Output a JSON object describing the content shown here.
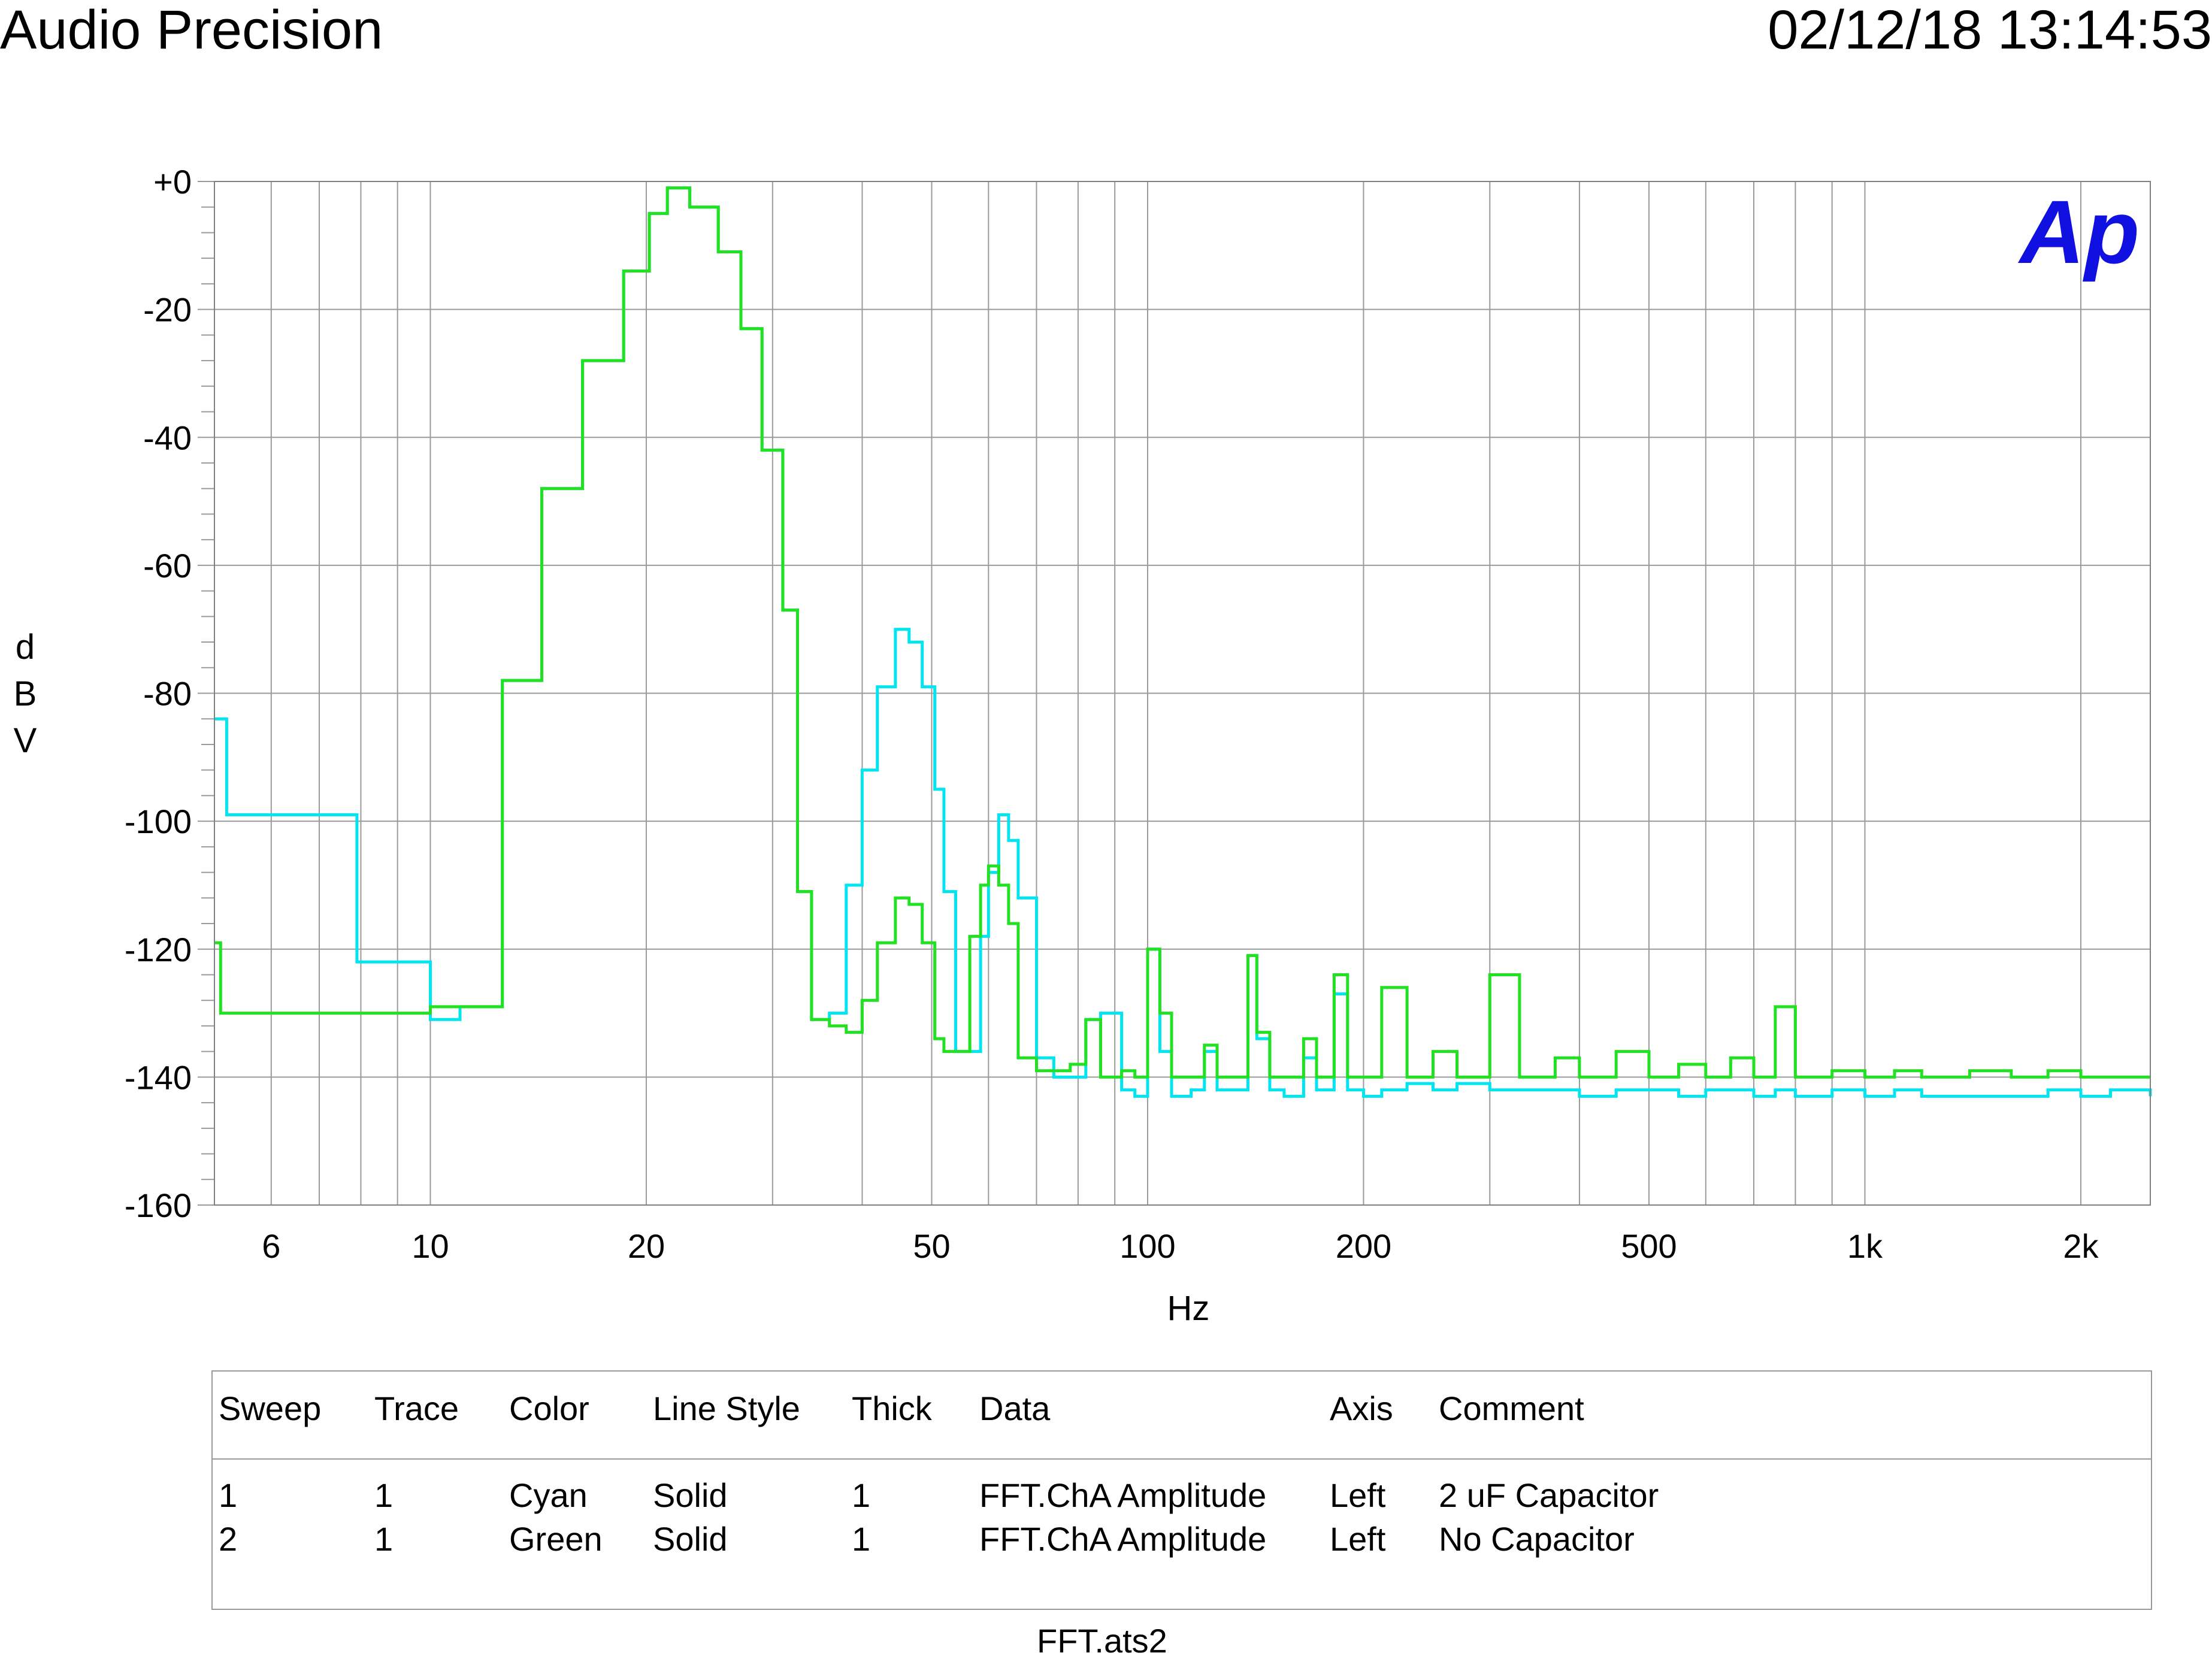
{
  "header": {
    "title": "Audio Precision",
    "timestamp": "02/12/18 13:14:53"
  },
  "logo": {
    "text": "Ap",
    "color": "#1010e0"
  },
  "footer": {
    "filename": "FFT.ats2"
  },
  "legend": {
    "columns": [
      "Sweep",
      "Trace",
      "Color",
      "Line Style",
      "Thick",
      "Data",
      "Axis",
      "Comment"
    ],
    "rows": [
      [
        "1",
        "1",
        "Cyan",
        "Solid",
        "1",
        "FFT.ChA Amplitude",
        "Left",
        "2 uF Capacitor"
      ],
      [
        "2",
        "1",
        "Green",
        "Solid",
        "1",
        "FFT.ChA Amplitude",
        "Left",
        "No Capacitor"
      ]
    ]
  },
  "chart_data": {
    "type": "line",
    "xlabel": "Hz",
    "ylabel": "dBV",
    "xscale": "log",
    "xlim": [
      5,
      2500
    ],
    "ylim": [
      -160,
      0
    ],
    "grid": true,
    "x_ticks": [
      {
        "value": 6,
        "label": "6"
      },
      {
        "value": 10,
        "label": "10"
      },
      {
        "value": 20,
        "label": "20"
      },
      {
        "value": 50,
        "label": "50"
      },
      {
        "value": 100,
        "label": "100"
      },
      {
        "value": 200,
        "label": "200"
      },
      {
        "value": 500,
        "label": "500"
      },
      {
        "value": 1000,
        "label": "1k"
      },
      {
        "value": 2000,
        "label": "2k"
      }
    ],
    "y_ticks": [
      {
        "value": 0,
        "label": "+0"
      },
      {
        "value": -20,
        "label": "-20"
      },
      {
        "value": -40,
        "label": "-40"
      },
      {
        "value": -60,
        "label": "-60"
      },
      {
        "value": -80,
        "label": "-80"
      },
      {
        "value": -100,
        "label": "-100"
      },
      {
        "value": -120,
        "label": "-120"
      },
      {
        "value": -140,
        "label": "-140"
      },
      {
        "value": -160,
        "label": "-160"
      }
    ],
    "series": [
      {
        "name": "2 uF Capacitor",
        "color": "#00e5f0",
        "x": [
          5,
          5.1,
          5.2,
          6.8,
          7.9,
          10.0,
          11.0,
          12.6,
          14.3,
          16.3,
          18.6,
          20.2,
          21.4,
          23.0,
          25.2,
          27.1,
          29.0,
          31.0,
          32.5,
          34.0,
          36.0,
          38.0,
          40.0,
          42.0,
          44.5,
          46.5,
          48.5,
          50.5,
          52.0,
          54.0,
          56.5,
          58.5,
          60.0,
          62.0,
          64.0,
          66.0,
          70.0,
          74.0,
          78.0,
          82.0,
          86.0,
          92.0,
          96.0,
          100.0,
          104.0,
          108.0,
          115.0,
          120.0,
          125.0,
          132.0,
          138.0,
          142.0,
          148.0,
          155.0,
          165.0,
          172.0,
          178.0,
          182.0,
          190.0,
          200.0,
          212.0,
          230.0,
          250.0,
          270.0,
          300.0,
          330.0,
          370.0,
          400.0,
          450.0,
          500.0,
          550.0,
          600.0,
          650.0,
          700.0,
          750.0,
          800.0,
          900.0,
          1000.0,
          1100.0,
          1200.0,
          1400.0,
          1600.0,
          1800.0,
          2000.0,
          2200.0,
          2500.0
        ],
        "y": [
          -84,
          -84,
          -99,
          -99,
          -122,
          -131,
          -129,
          -78,
          -48,
          -28,
          -14,
          -5,
          -1,
          -4,
          -11,
          -23,
          -42,
          -67,
          -111,
          -131,
          -130,
          -110,
          -92,
          -79,
          -70,
          -72,
          -79,
          -95,
          -111,
          -136,
          -136,
          -118,
          -108,
          -99,
          -103,
          -112,
          -137,
          -140,
          -140,
          -131,
          -130,
          -142,
          -143,
          -120,
          -136,
          -143,
          -142,
          -136,
          -142,
          -142,
          -121,
          -134,
          -142,
          -143,
          -137,
          -142,
          -142,
          -127,
          -142,
          -143,
          -142,
          -141,
          -142,
          -141,
          -142,
          -142,
          -142,
          -143,
          -142,
          -142,
          -143,
          -142,
          -142,
          -143,
          -142,
          -143,
          -142,
          -143,
          -142,
          -143,
          -143,
          -143,
          -142,
          -143,
          -142,
          -143
        ]
      },
      {
        "name": "No Capacitor",
        "color": "#22e022",
        "x": [
          5,
          5.1,
          5.2,
          6.8,
          7.9,
          10.0,
          11.0,
          12.6,
          14.3,
          16.3,
          18.6,
          20.2,
          21.4,
          23.0,
          25.2,
          27.1,
          29.0,
          31.0,
          32.5,
          34.0,
          36.0,
          38.0,
          40.0,
          42.0,
          44.5,
          46.5,
          48.5,
          50.5,
          52.0,
          54.0,
          56.5,
          58.5,
          60.0,
          62.0,
          64.0,
          66.0,
          70.0,
          74.0,
          78.0,
          82.0,
          86.0,
          92.0,
          96.0,
          100.0,
          104.0,
          108.0,
          115.0,
          120.0,
          125.0,
          132.0,
          138.0,
          142.0,
          148.0,
          155.0,
          165.0,
          172.0,
          178.0,
          182.0,
          190.0,
          200.0,
          212.0,
          230.0,
          250.0,
          270.0,
          300.0,
          330.0,
          370.0,
          400.0,
          450.0,
          500.0,
          550.0,
          600.0,
          650.0,
          700.0,
          750.0,
          800.0,
          900.0,
          1000.0,
          1100.0,
          1200.0,
          1400.0,
          1600.0,
          1800.0,
          2000.0,
          2200.0,
          2500.0
        ],
        "y": [
          -119,
          -130,
          -130,
          -130,
          -130,
          -129,
          -129,
          -78,
          -48,
          -28,
          -14,
          -5,
          -1,
          -4,
          -11,
          -23,
          -42,
          -67,
          -111,
          -131,
          -132,
          -133,
          -128,
          -119,
          -112,
          -113,
          -119,
          -134,
          -136,
          -136,
          -118,
          -110,
          -107,
          -110,
          -116,
          -137,
          -139,
          -139,
          -138,
          -131,
          -140,
          -139,
          -140,
          -120,
          -130,
          -140,
          -140,
          -135,
          -140,
          -140,
          -121,
          -133,
          -140,
          -140,
          -134,
          -140,
          -140,
          -124,
          -140,
          -140,
          -126,
          -140,
          -136,
          -140,
          -124,
          -140,
          -137,
          -140,
          -136,
          -140,
          -138,
          -140,
          -137,
          -140,
          -129,
          -140,
          -139,
          -140,
          -139,
          -140,
          -139,
          -140,
          -139,
          -140,
          -140,
          -140
        ]
      }
    ]
  }
}
